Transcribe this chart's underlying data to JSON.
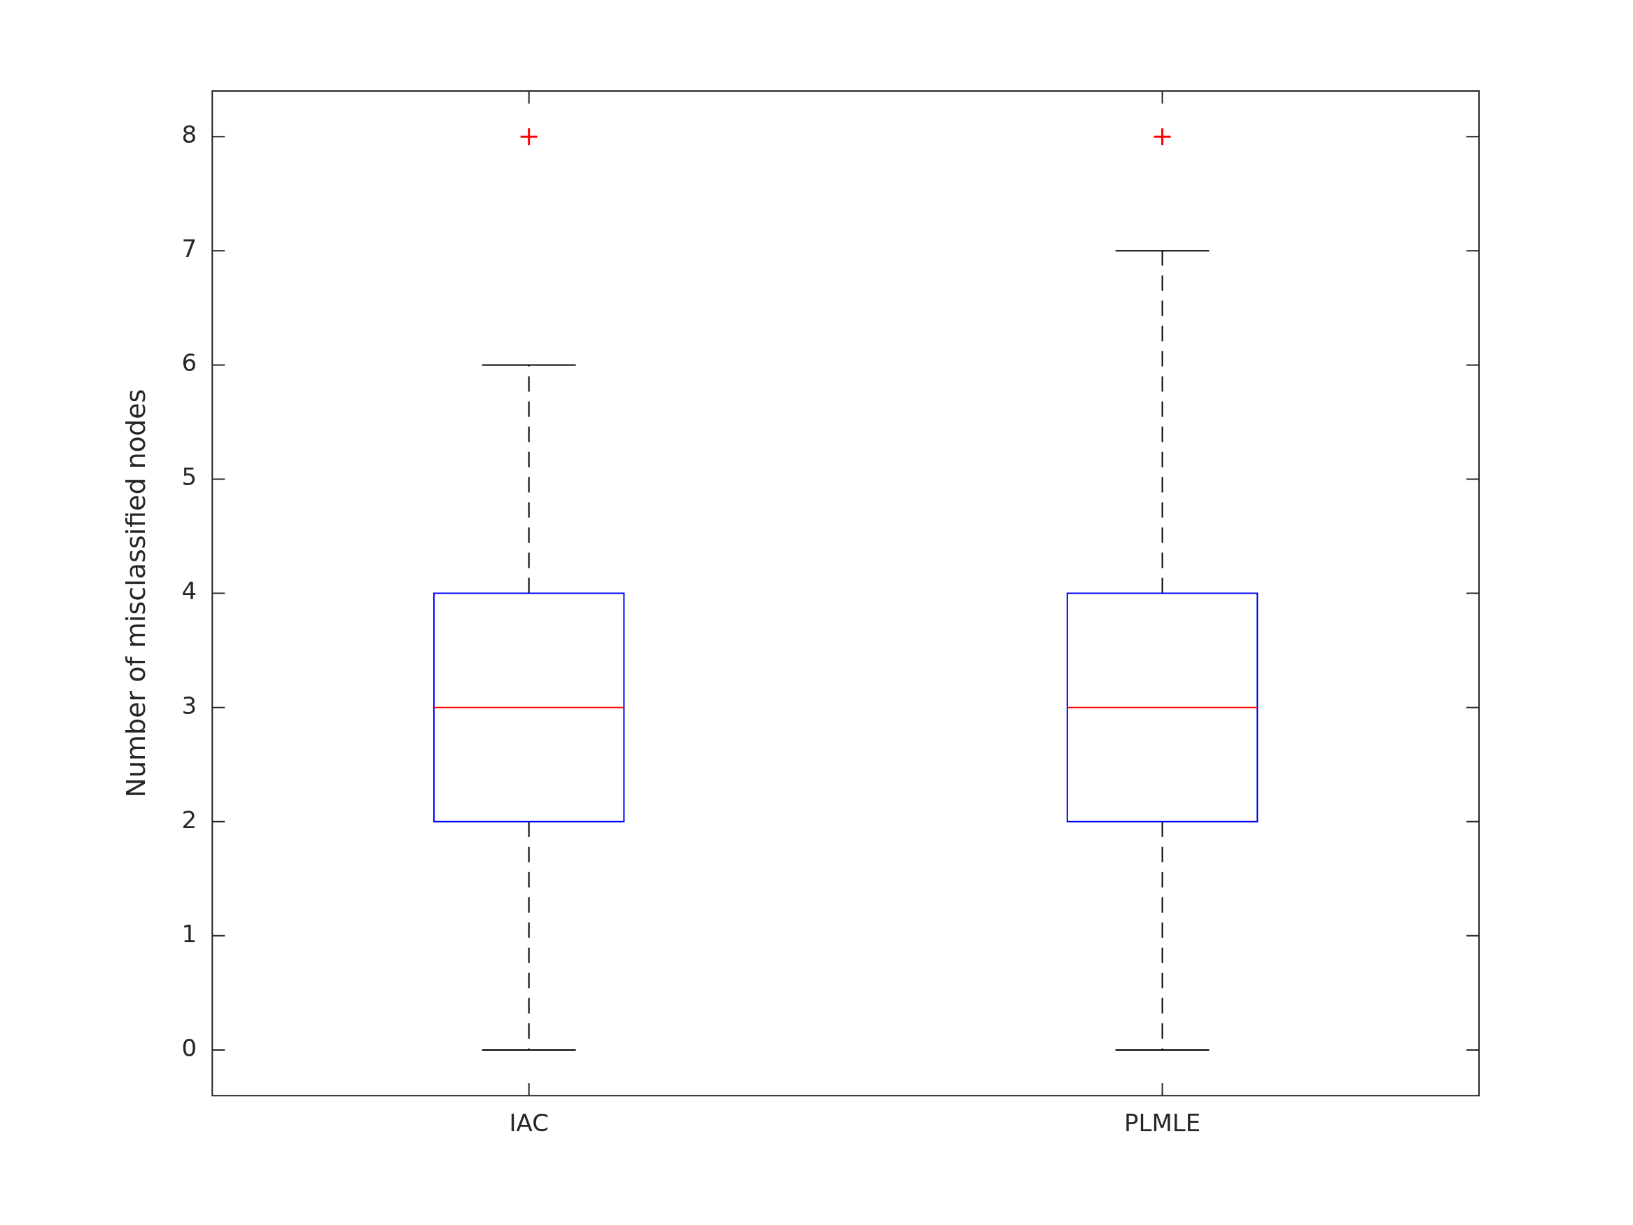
{
  "chart_data": {
    "type": "box",
    "ylabel": "Number of misclassified nodes",
    "categories": [
      "IAC",
      "PLMLE"
    ],
    "color": "#0000ff",
    "boxes": [
      {
        "low": 0,
        "q1": 2,
        "median": 3,
        "q3": 4,
        "high": 6,
        "outliers": [
          8
        ]
      },
      {
        "low": 0,
        "q1": 2,
        "median": 3,
        "q3": 4,
        "high": 7,
        "outliers": [
          8
        ]
      }
    ],
    "ylim": [
      -0.4,
      8.4
    ],
    "yticks": [
      0,
      1,
      2,
      3,
      4,
      5,
      6,
      7,
      8
    ],
    "grid": false,
    "legend": false
  }
}
